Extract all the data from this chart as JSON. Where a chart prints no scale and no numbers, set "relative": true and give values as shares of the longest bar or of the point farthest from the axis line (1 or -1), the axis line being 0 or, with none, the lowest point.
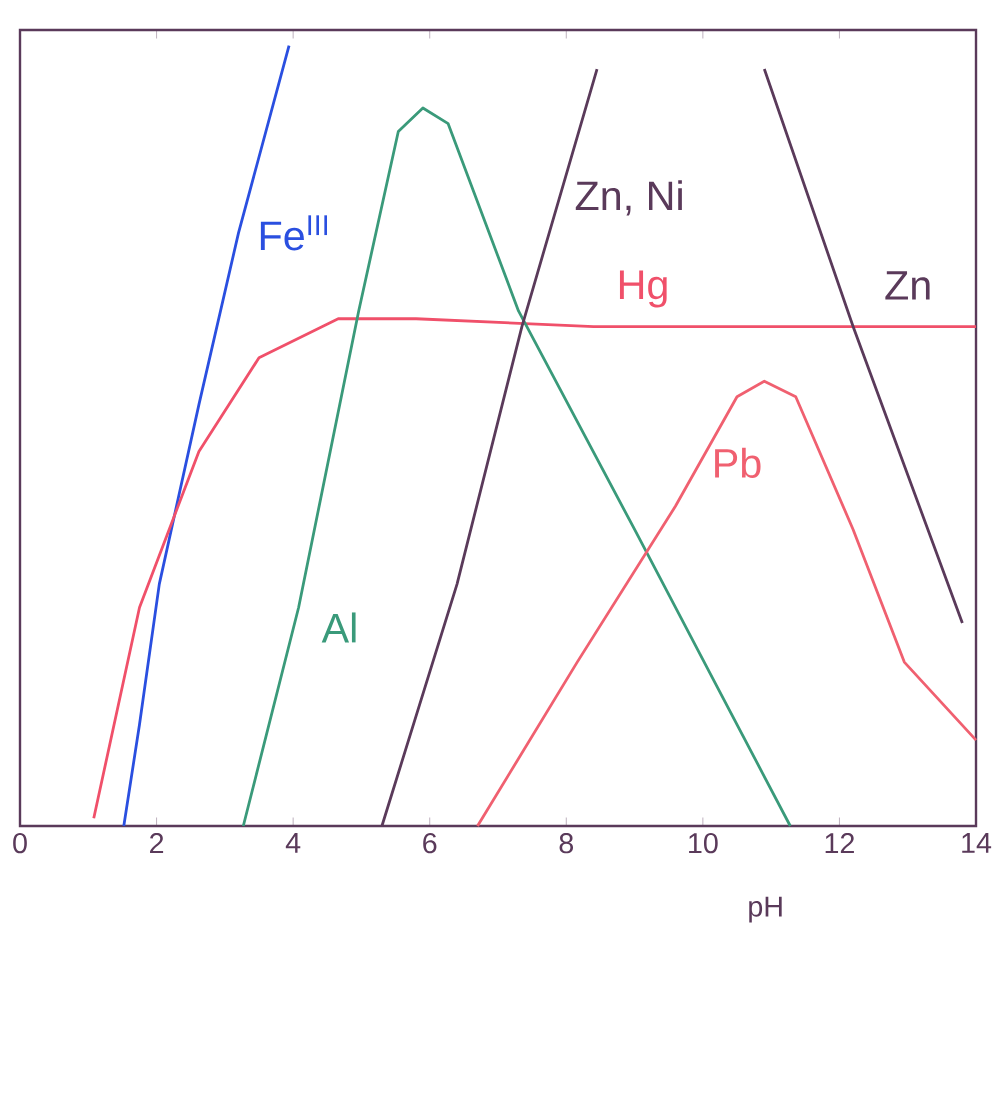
{
  "chart_data": {
    "type": "line",
    "xlabel": "pH",
    "relative": true,
    "xlim": [
      0,
      14
    ],
    "xticks": [
      0,
      2,
      4,
      6,
      8,
      10,
      12,
      14
    ],
    "grid": false,
    "legend": false,
    "marker": "none",
    "line_style": "solid",
    "series": [
      {
        "name": "Fe$^{III}$",
        "color": "#2a4fe0",
        "x": [
          1.52,
          1.75,
          2.04,
          2.62,
          3.2,
          3.94
        ],
        "values": [
          0,
          0.13,
          0.31,
          0.54,
          0.76,
          1.0
        ]
      },
      {
        "name": "Hg",
        "color": "#f0506a",
        "x": [
          1.08,
          1.75,
          2.62,
          3.5,
          4.66,
          5.8,
          8.4,
          14
        ],
        "values": [
          0.01,
          0.28,
          0.48,
          0.6,
          0.65,
          0.65,
          0.64,
          0.64
        ]
      },
      {
        "name": "Al",
        "color": "#3a9a7a",
        "x": [
          3.27,
          4.08,
          4.96,
          5.54,
          5.9,
          6.27,
          7.3,
          9.0,
          10.2,
          11.28
        ],
        "values": [
          0,
          0.28,
          0.66,
          0.89,
          0.92,
          0.9,
          0.66,
          0.38,
          0.18,
          0
        ]
      },
      {
        "name": "Zn, Ni",
        "color": "#5a3a5a",
        "x": [
          5.3,
          6.4,
          7.35,
          8.45
        ],
        "values": [
          0,
          0.31,
          0.64,
          0.97
        ]
      },
      {
        "name": "Zn",
        "color": "#5a3a5a",
        "x": [
          10.9,
          12.2,
          13.8
        ],
        "values": [
          0.97,
          0.64,
          0.26
        ]
      },
      {
        "name": "Pb",
        "color": "#f06070",
        "x": [
          6.7,
          8.16,
          9.6,
          10.5,
          10.9,
          11.36,
          12.2,
          12.95,
          14
        ],
        "values": [
          0,
          0.21,
          0.41,
          0.55,
          0.57,
          0.55,
          0.38,
          0.21,
          0.11
        ]
      }
    ]
  }
}
